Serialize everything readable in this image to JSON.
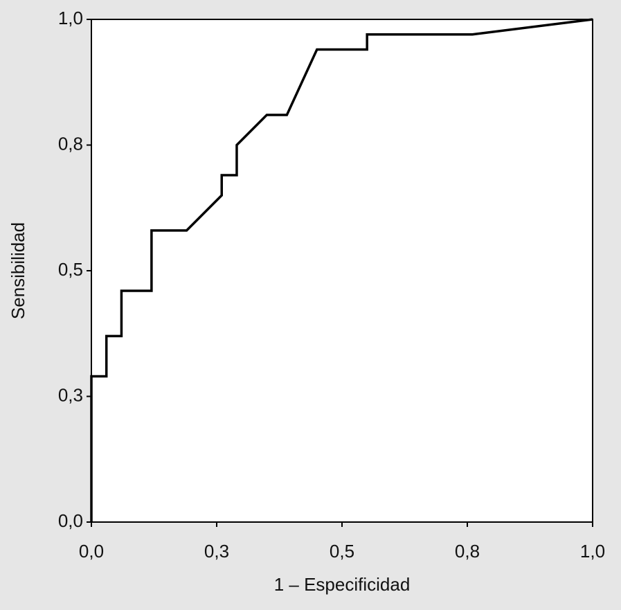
{
  "chart_data": {
    "type": "line",
    "x_label": "1 – Especificidad",
    "y_label": "Sensibilidad",
    "x": [
      0,
      0,
      0.03,
      0.03,
      0.06,
      0.06,
      0.12,
      0.12,
      0.19,
      0.26,
      0.26,
      0.29,
      0.29,
      0.35,
      0.39,
      0.45,
      0.55,
      0.55,
      0.76,
      1
    ],
    "values": [
      0,
      0.29,
      0.29,
      0.37,
      0.37,
      0.46,
      0.46,
      0.58,
      0.58,
      0.65,
      0.69,
      0.69,
      0.75,
      0.81,
      0.81,
      0.94,
      0.94,
      0.97,
      0.97,
      1
    ],
    "color": "#000000",
    "xlim": [
      0,
      1
    ],
    "ylim": [
      0,
      1
    ],
    "xticks": [
      {
        "value": 0,
        "label": "0,0"
      },
      {
        "value": 0.25,
        "label": "0,3"
      },
      {
        "value": 0.5,
        "label": "0,5"
      },
      {
        "value": 0.75,
        "label": "0,8"
      },
      {
        "value": 1,
        "label": "1,0"
      }
    ],
    "yticks": [
      {
        "value": 0,
        "label": "0,0"
      },
      {
        "value": 0.25,
        "label": "0,3"
      },
      {
        "value": 0.5,
        "label": "0,5"
      },
      {
        "value": 0.75,
        "label": "0,8"
      },
      {
        "value": 1,
        "label": "1,0"
      }
    ],
    "grid": false
  }
}
